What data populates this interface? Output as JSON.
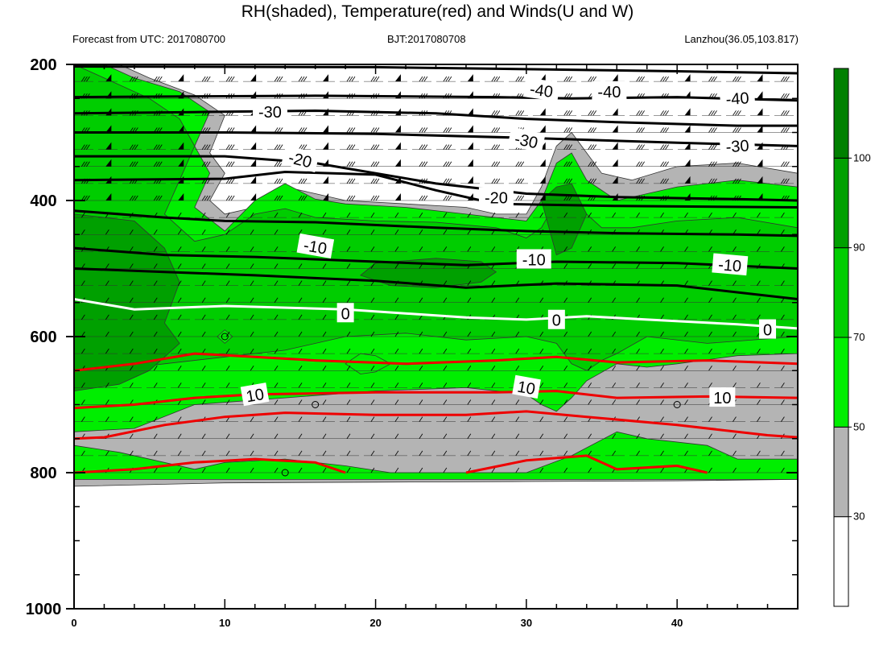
{
  "title": "RH(shaded), Temperature(red) and Winds(U and W)",
  "subtitle_left": "Forecast from UTC: 2017080700",
  "subtitle_center": "BJT:2017080708",
  "subtitle_right": "Lanzhou(36.05,103.817)",
  "chart_data": {
    "type": "contour",
    "x_ticks": [
      0,
      10,
      20,
      30,
      40
    ],
    "xlim": [
      0,
      48
    ],
    "y_ticks": [
      200,
      400,
      600,
      800,
      1000
    ],
    "ylim": [
      1000,
      200
    ],
    "y_reversed": true,
    "colorbar": {
      "levels": [
        30,
        50,
        70,
        90,
        100
      ],
      "labels": [
        "30",
        "50",
        "70",
        "90",
        "100"
      ],
      "colors": [
        "#ffffff",
        "#b4b4b4",
        "#00ee00",
        "#00cd00",
        "#00a000",
        "#008000"
      ]
    },
    "rh_regions": [
      {
        "level": "50-70",
        "color": "#00ee00"
      },
      {
        "level": "70-90",
        "color": "#00cd00"
      },
      {
        "level": "90-100",
        "color": "#00a000"
      },
      {
        "level": "30-50",
        "color": "#b4b4b4"
      }
    ],
    "isotherm_labels_black": [
      "-40",
      "-40",
      "-40",
      "-30",
      "-30",
      "-30",
      "-20",
      "-20",
      "-10",
      "-10",
      "-10"
    ],
    "isotherm_labels_white": [
      "0",
      "0",
      "0"
    ],
    "isotherm_labels_red": [
      "10",
      "10",
      "10"
    ],
    "isotherms": [
      {
        "t": -40,
        "color": "#000000",
        "pts": [
          [
            0,
            203
          ],
          [
            20,
            204
          ],
          [
            30,
            207
          ],
          [
            40,
            210
          ],
          [
            48,
            213
          ]
        ]
      },
      {
        "t": -40,
        "color": "#000000",
        "pts": [
          [
            0,
            248
          ],
          [
            16,
            246
          ],
          [
            28,
            248
          ],
          [
            33,
            250
          ],
          [
            40,
            248
          ],
          [
            48,
            253
          ]
        ]
      },
      {
        "t": -30,
        "color": "#000000",
        "pts": [
          [
            0,
            272
          ],
          [
            8,
            270
          ],
          [
            16,
            268
          ],
          [
            24,
            272
          ],
          [
            30,
            280
          ],
          [
            36,
            285
          ],
          [
            44,
            290
          ],
          [
            48,
            290
          ]
        ]
      },
      {
        "t": -30,
        "color": "#000000",
        "pts": [
          [
            0,
            300
          ],
          [
            10,
            300
          ],
          [
            20,
            302
          ],
          [
            30,
            308
          ],
          [
            40,
            315
          ],
          [
            48,
            320
          ]
        ]
      },
      {
        "t": -20,
        "color": "#000000",
        "pts": [
          [
            0,
            335
          ],
          [
            10,
            335
          ],
          [
            16,
            345
          ],
          [
            24,
            375
          ],
          [
            30,
            390
          ],
          [
            36,
            395
          ],
          [
            44,
            398
          ],
          [
            48,
            400
          ]
        ]
      },
      {
        "t": -20,
        "color": "#000000",
        "pts": [
          [
            0,
            370
          ],
          [
            10,
            368
          ],
          [
            14,
            358
          ],
          [
            20,
            362
          ],
          [
            24,
            385
          ],
          [
            28,
            405
          ],
          [
            36,
            408
          ],
          [
            48,
            410
          ]
        ]
      },
      {
        "t": -10,
        "color": "#000000",
        "pts": [
          [
            0,
            415
          ],
          [
            6,
            425
          ],
          [
            10,
            430
          ],
          [
            16,
            432
          ],
          [
            24,
            440
          ],
          [
            30,
            445
          ],
          [
            36,
            448
          ],
          [
            44,
            450
          ],
          [
            48,
            452
          ]
        ]
      },
      {
        "t": -10,
        "color": "#000000",
        "pts": [
          [
            0,
            470
          ],
          [
            6,
            480
          ],
          [
            12,
            483
          ],
          [
            20,
            490
          ],
          [
            26,
            495
          ],
          [
            32,
            490
          ],
          [
            40,
            492
          ],
          [
            48,
            500
          ]
        ]
      },
      {
        "t": -10,
        "color": "#000000",
        "pts": [
          [
            0,
            500
          ],
          [
            6,
            505
          ],
          [
            12,
            510
          ],
          [
            20,
            518
          ],
          [
            26,
            528
          ],
          [
            32,
            522
          ],
          [
            40,
            525
          ],
          [
            48,
            545
          ]
        ]
      },
      {
        "t": 0,
        "color": "#ffffff",
        "pts": [
          [
            0,
            545
          ],
          [
            4,
            560
          ],
          [
            10,
            555
          ],
          [
            18,
            560
          ],
          [
            26,
            572
          ],
          [
            30,
            575
          ],
          [
            34,
            570
          ],
          [
            38,
            575
          ],
          [
            44,
            582
          ],
          [
            48,
            588
          ]
        ]
      },
      {
        "t": 10,
        "color": "#ee0000",
        "pts": [
          [
            0,
            650
          ],
          [
            4,
            640
          ],
          [
            8,
            625
          ],
          [
            12,
            630
          ],
          [
            16,
            635
          ],
          [
            22,
            640
          ],
          [
            28,
            635
          ],
          [
            32,
            630
          ],
          [
            36,
            638
          ],
          [
            42,
            635
          ],
          [
            48,
            640
          ]
        ]
      },
      {
        "t": 10,
        "color": "#ee0000",
        "pts": [
          [
            0,
            705
          ],
          [
            4,
            700
          ],
          [
            8,
            690
          ],
          [
            12,
            685
          ],
          [
            20,
            682
          ],
          [
            28,
            682
          ],
          [
            32,
            680
          ],
          [
            36,
            690
          ],
          [
            42,
            688
          ],
          [
            48,
            690
          ]
        ]
      },
      {
        "t": 10,
        "color": "#ee0000",
        "pts": [
          [
            0,
            750
          ],
          [
            2,
            748
          ],
          [
            6,
            730
          ],
          [
            10,
            718
          ],
          [
            14,
            712
          ],
          [
            20,
            715
          ],
          [
            26,
            715
          ],
          [
            30,
            710
          ],
          [
            34,
            718
          ],
          [
            40,
            730
          ],
          [
            46,
            745
          ],
          [
            48,
            748
          ]
        ]
      },
      {
        "t": 10,
        "color": "#ee0000",
        "pts": [
          [
            0,
            800
          ],
          [
            4,
            795
          ],
          [
            8,
            785
          ],
          [
            12,
            780
          ],
          [
            16,
            785
          ],
          [
            18,
            800
          ]
        ]
      },
      {
        "t": 10,
        "color": "#ee0000",
        "pts": [
          [
            26,
            800
          ],
          [
            30,
            782
          ],
          [
            34,
            775
          ],
          [
            36,
            795
          ],
          [
            40,
            790
          ],
          [
            42,
            800
          ]
        ]
      }
    ]
  }
}
